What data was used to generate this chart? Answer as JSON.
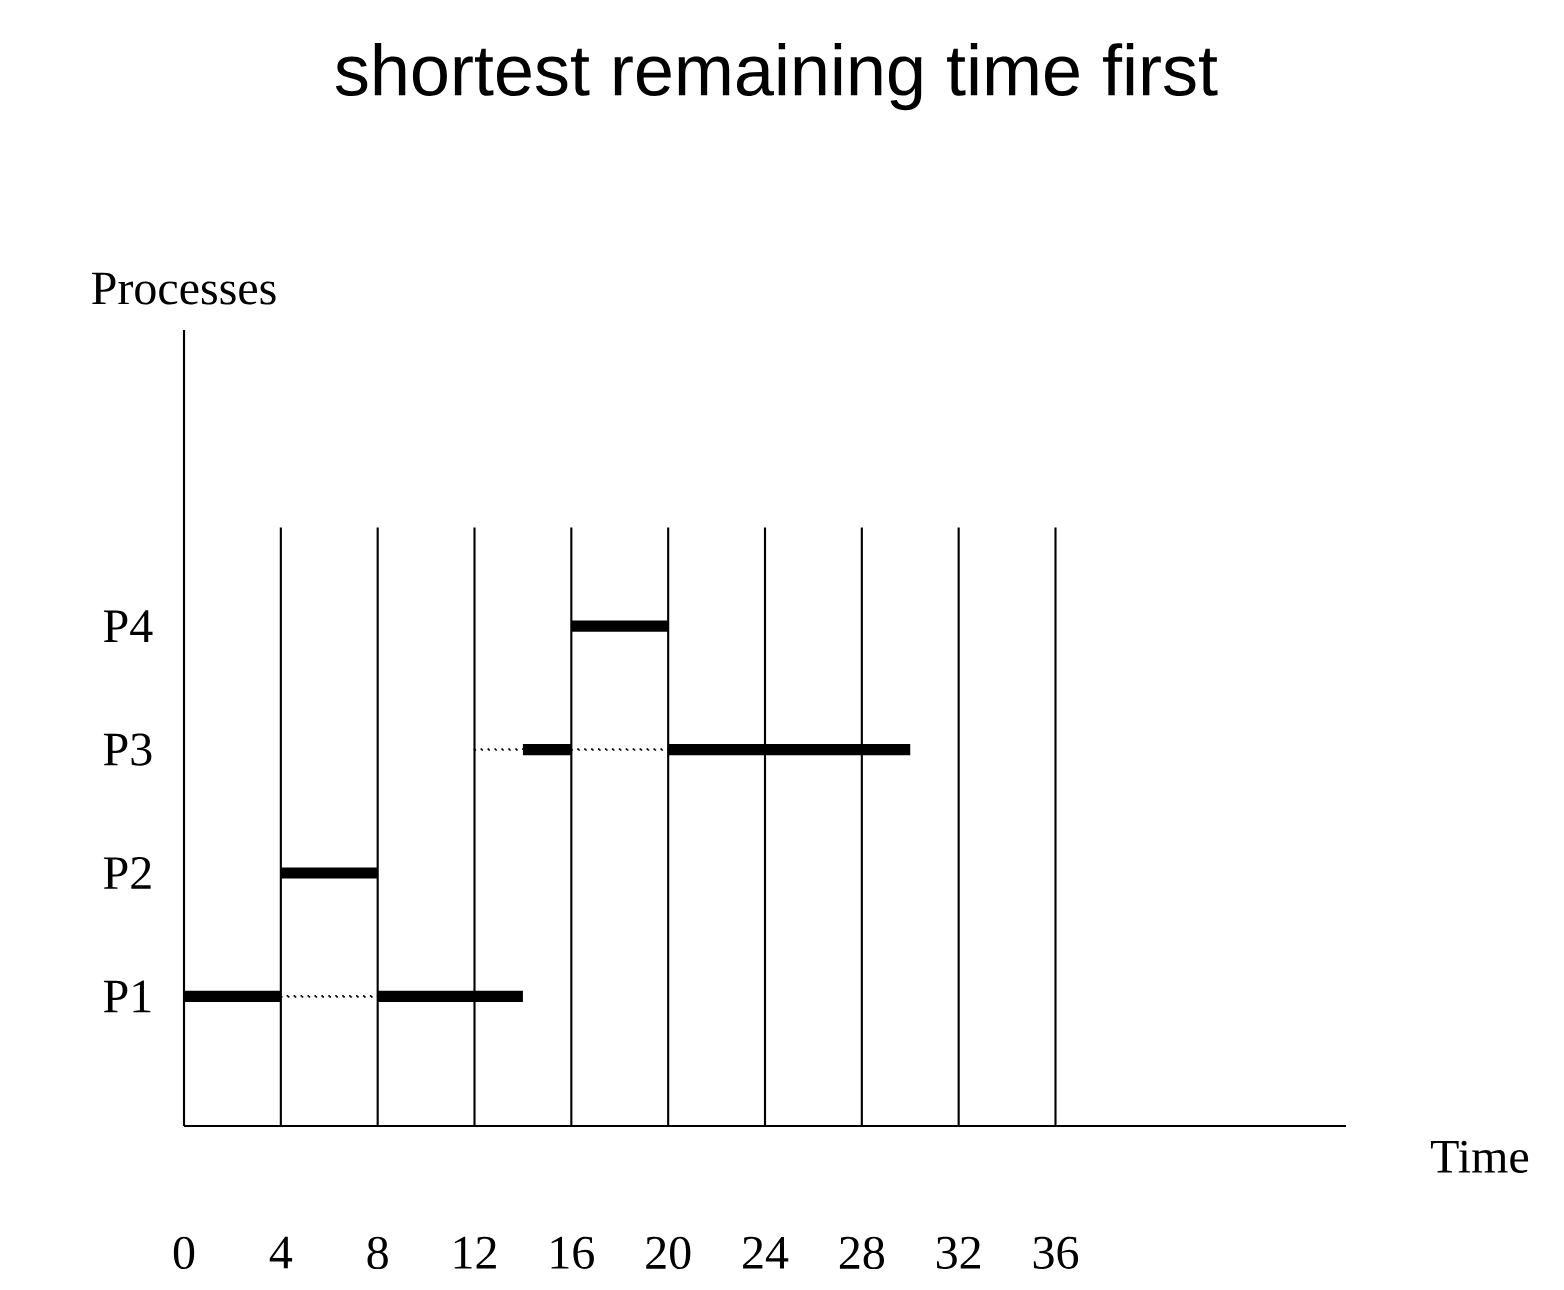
{
  "chart_data": {
    "type": "bar",
    "orientation": "horizontal",
    "title": "shortest remaining time first",
    "xlabel": "Time",
    "ylabel": "Processes",
    "categories": [
      "P4",
      "P3",
      "P2",
      "P1"
    ],
    "xlim": [
      0,
      48
    ],
    "xticks": [
      0,
      4,
      8,
      12,
      16,
      20,
      24,
      28,
      32,
      36
    ],
    "grid": "x",
    "series": [
      {
        "color": "#000000",
        "base": [
          16,
          14,
          4,
          0
        ],
        "values": [
          4,
          2,
          4,
          4
        ]
      },
      {
        "color": "#000000",
        "base": [
          null,
          20,
          null,
          8
        ],
        "values": [
          null,
          10,
          null,
          6
        ]
      },
      {
        "color": "#000000",
        "line_style": "dotted",
        "base": [
          null,
          12,
          null,
          4
        ],
        "values": [
          null,
          2,
          null,
          4
        ]
      },
      {
        "color": "#000000",
        "line_style": "dotted",
        "base": [
          null,
          16,
          null,
          null
        ],
        "values": [
          null,
          4,
          null,
          null
        ]
      }
    ]
  }
}
